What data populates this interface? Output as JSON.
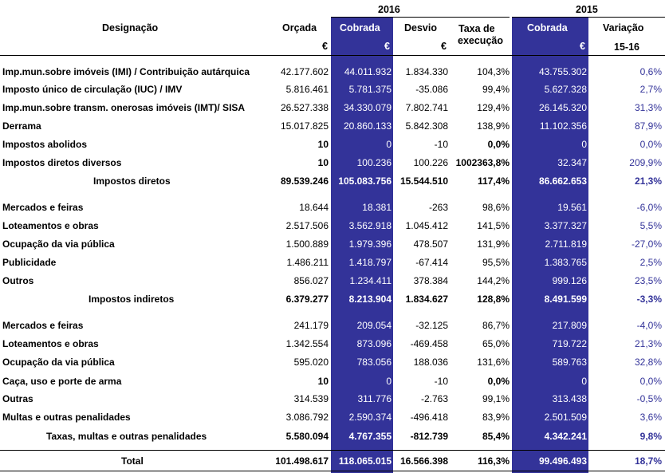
{
  "header": {
    "year_2016": "2016",
    "year_2015": "2015",
    "designacao": "Designação",
    "orcada": "Orçada",
    "cobrada_2016": "Cobrada",
    "desvio": "Desvio",
    "taxa_l1": "Taxa de",
    "taxa_l2": "execução",
    "cobrada_2015": "Cobrada",
    "variacao": "Variação",
    "variacao_sub": "15-16",
    "eur": "€"
  },
  "rows": [
    {
      "label": "Imp.mun.sobre imóveis (IMI) / Contribuição autárquica",
      "orcada": "42.177.602",
      "cobrada": "44.011.932",
      "desvio": "1.834.330",
      "taxa": "104,3%",
      "cobrada15": "43.755.302",
      "var": "0,6%"
    },
    {
      "label": "Imposto único de circulação (IUC) / IMV",
      "orcada": "5.816.461",
      "cobrada": "5.781.375",
      "desvio": "-35.086",
      "taxa": "99,4%",
      "cobrada15": "5.627.328",
      "var": "2,7%"
    },
    {
      "label": "Imp.mun.sobre transm. onerosas imóveis (IMT)/ SISA",
      "orcada": "26.527.338",
      "cobrada": "34.330.079",
      "desvio": "7.802.741",
      "taxa": "129,4%",
      "cobrada15": "26.145.320",
      "var": "31,3%"
    },
    {
      "label": "Derrama",
      "orcada": "15.017.825",
      "cobrada": "20.860.133",
      "desvio": "5.842.308",
      "taxa": "138,9%",
      "cobrada15": "11.102.356",
      "var": "87,9%"
    },
    {
      "label": "Impostos abolidos",
      "orcada": "10",
      "cobrada": "0",
      "desvio": "-10",
      "taxa": "0,0%",
      "cobrada15": "0",
      "var": "0,0%"
    },
    {
      "label": "Impostos diretos diversos",
      "orcada": "10",
      "cobrada": "100.236",
      "desvio": "100.226",
      "taxa": "1002363,8%",
      "cobrada15": "32.347",
      "var": "209,9%"
    },
    {
      "label": "Impostos diretos",
      "orcada": "89.539.246",
      "cobrada": "105.083.756",
      "desvio": "15.544.510",
      "taxa": "117,4%",
      "cobrada15": "86.662.653",
      "var": "21,3%"
    },
    {
      "label": "Mercados e feiras",
      "orcada": "18.644",
      "cobrada": "18.381",
      "desvio": "-263",
      "taxa": "98,6%",
      "cobrada15": "19.561",
      "var": "-6,0%"
    },
    {
      "label": "Loteamentos e obras",
      "orcada": "2.517.506",
      "cobrada": "3.562.918",
      "desvio": "1.045.412",
      "taxa": "141,5%",
      "cobrada15": "3.377.327",
      "var": "5,5%"
    },
    {
      "label": "Ocupação da via pública",
      "orcada": "1.500.889",
      "cobrada": "1.979.396",
      "desvio": "478.507",
      "taxa": "131,9%",
      "cobrada15": "2.711.819",
      "var": "-27,0%"
    },
    {
      "label": "Publicidade",
      "orcada": "1.486.211",
      "cobrada": "1.418.797",
      "desvio": "-67.414",
      "taxa": "95,5%",
      "cobrada15": "1.383.765",
      "var": "2,5%"
    },
    {
      "label": "Outros",
      "orcada": "856.027",
      "cobrada": "1.234.411",
      "desvio": "378.384",
      "taxa": "144,2%",
      "cobrada15": "999.126",
      "var": "23,5%"
    },
    {
      "label": "Impostos indiretos",
      "orcada": "6.379.277",
      "cobrada": "8.213.904",
      "desvio": "1.834.627",
      "taxa": "128,8%",
      "cobrada15": "8.491.599",
      "var": "-3,3%"
    },
    {
      "label": "Mercados e feiras",
      "orcada": "241.179",
      "cobrada": "209.054",
      "desvio": "-32.125",
      "taxa": "86,7%",
      "cobrada15": "217.809",
      "var": "-4,0%"
    },
    {
      "label": "Loteamentos e obras",
      "orcada": "1.342.554",
      "cobrada": "873.096",
      "desvio": "-469.458",
      "taxa": "65,0%",
      "cobrada15": "719.722",
      "var": "21,3%"
    },
    {
      "label": "Ocupação da via pública",
      "orcada": "595.020",
      "cobrada": "783.056",
      "desvio": "188.036",
      "taxa": "131,6%",
      "cobrada15": "589.763",
      "var": "32,8%"
    },
    {
      "label": "Caça, uso e porte de arma",
      "orcada": "10",
      "cobrada": "0",
      "desvio": "-10",
      "taxa": "0,0%",
      "cobrada15": "0",
      "var": "0,0%"
    },
    {
      "label": "Outras",
      "orcada": "314.539",
      "cobrada": "311.776",
      "desvio": "-2.763",
      "taxa": "99,1%",
      "cobrada15": "313.438",
      "var": "-0,5%"
    },
    {
      "label": "Multas e outras penalidades",
      "orcada": "3.086.792",
      "cobrada": "2.590.374",
      "desvio": "-496.418",
      "taxa": "83,9%",
      "cobrada15": "2.501.509",
      "var": "3,6%"
    },
    {
      "label": "Taxas, multas e outras penalidades",
      "orcada": "5.580.094",
      "cobrada": "4.767.355",
      "desvio": "-812.739",
      "taxa": "85,4%",
      "cobrada15": "4.342.241",
      "var": "9,8%"
    },
    {
      "label": "Total",
      "orcada": "101.498.617",
      "cobrada": "118.065.015",
      "desvio": "16.566.398",
      "taxa": "116,3%",
      "cobrada15": "99.496.493",
      "var": "18,7%"
    }
  ],
  "colors": {
    "accent": "#333399"
  }
}
